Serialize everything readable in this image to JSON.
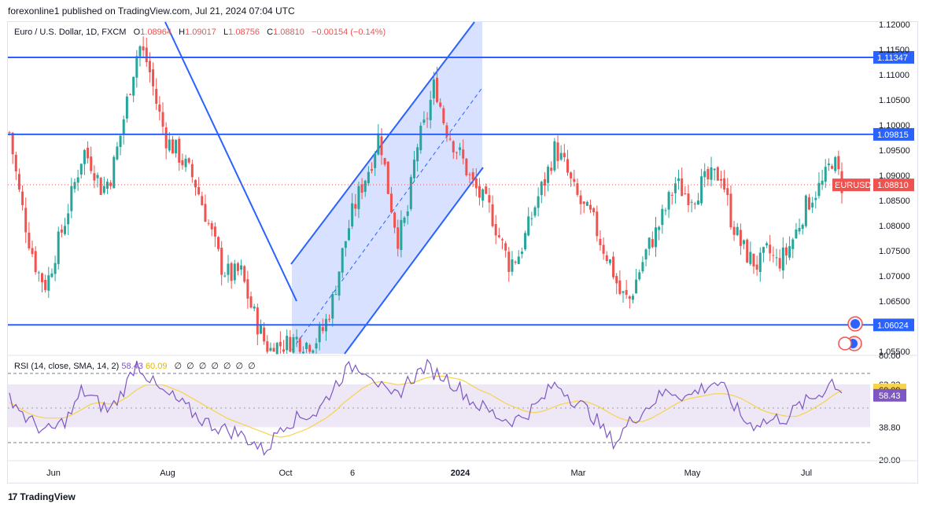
{
  "header": {
    "publisher_line": "forexonline1 published on TradingView.com, Jul 21, 2024 07:04 UTC"
  },
  "legend": {
    "symbol": "Euro / U.S. Dollar, 1D, FXCM",
    "open_label": "O",
    "open": "1.08964",
    "high_label": "H",
    "high": "1.09017",
    "low_label": "L",
    "low": "1.08756",
    "close_label": "C",
    "close": "1.08810",
    "change": "−0.00154 (−0.14%)"
  },
  "rsi_legend": {
    "label": "RSI (14, close, SMA, 14, 2)",
    "rsi_value": "58.43",
    "sma_value": "60.09",
    "empty_markers": [
      "∅",
      "∅",
      "∅",
      "∅",
      "∅",
      "∅",
      "∅"
    ]
  },
  "footer": {
    "brand": "TradingView",
    "logo": "17"
  },
  "colors": {
    "bull": "#26a69a",
    "bear": "#ef5350",
    "line_blue": "#2962ff",
    "channel_fill": "#d1dcff",
    "rsi_line": "#7e57c2",
    "rsi_sma": "#f7d34a",
    "rsi_band": "#ede7f6"
  },
  "chart_data": [
    {
      "type": "candlestick",
      "title": "Euro / U.S. Dollar, 1D, FXCM",
      "ylim": [
        1.0545,
        1.1205
      ],
      "y_ticks": [
        "1.12000",
        "1.11500",
        "1.11000",
        "1.10500",
        "1.10000",
        "1.09500",
        "1.09000",
        "1.08500",
        "1.08000",
        "1.07500",
        "1.07000",
        "1.06500",
        "1.05500"
      ],
      "x_labels": [
        "Jun",
        "Aug",
        "Oct",
        "6",
        "2024",
        "Mar",
        "May",
        "Jul"
      ],
      "current_price": {
        "label": "EURUSD",
        "value": "1.08810"
      },
      "horizontal_levels": [
        {
          "name": "resistance-high",
          "value": "1.11347"
        },
        {
          "name": "resistance-mid",
          "value": "1.09815"
        },
        {
          "name": "support",
          "value": "1.06024"
        }
      ],
      "close_path": [
        1.0985,
        1.087,
        1.078,
        1.071,
        1.068,
        1.075,
        1.081,
        1.088,
        1.095,
        1.092,
        1.087,
        1.09,
        1.098,
        1.1075,
        1.116,
        1.112,
        1.1035,
        1.097,
        1.095,
        1.092,
        1.089,
        1.0835,
        1.0775,
        1.0715,
        1.07,
        1.071,
        1.0645,
        1.0595,
        1.055,
        1.0562,
        1.0565,
        1.0575,
        1.0565,
        1.057,
        1.0595,
        1.0655,
        1.0745,
        1.082,
        1.0875,
        1.092,
        1.0985,
        1.0865,
        1.0775,
        1.082,
        1.0955,
        1.1005,
        1.1085,
        1.1005,
        1.0965,
        1.093,
        1.0885,
        1.0855,
        1.083,
        1.0775,
        1.0725,
        1.074,
        1.079,
        1.085,
        1.0895,
        1.0955,
        1.092,
        1.087,
        1.0835,
        1.0815,
        1.0765,
        1.0725,
        1.0665,
        1.065,
        1.0705,
        1.0755,
        1.079,
        1.0835,
        1.0885,
        1.0865,
        1.086,
        1.0885,
        1.0895,
        1.0905,
        1.0815,
        1.0765,
        1.0735,
        1.072,
        1.075,
        1.0725,
        1.0745,
        1.0785,
        1.0835,
        1.0865,
        1.0885,
        1.0935,
        1.0881
      ]
    },
    {
      "type": "line",
      "title": "RSI (14, close, SMA, 14, 2)",
      "ylim": [
        20,
        80
      ],
      "y_ticks": [
        "80.00",
        "63.33",
        "38.80",
        "20.00"
      ],
      "series": [
        {
          "name": "RSI",
          "last": 58.43,
          "values": [
            57,
            50,
            43,
            40,
            36,
            38,
            42,
            48,
            60,
            56,
            52,
            48,
            55,
            64,
            76,
            70,
            63,
            58,
            56,
            52,
            48,
            44,
            41,
            39,
            37,
            36,
            33,
            30,
            25,
            30,
            40,
            42,
            44,
            46,
            47,
            55,
            63,
            70,
            74,
            73,
            70,
            62,
            55,
            58,
            65,
            69,
            74,
            70,
            68,
            64,
            60,
            54,
            51,
            48,
            45,
            43,
            43,
            46,
            50,
            55,
            63,
            62,
            56,
            52,
            48,
            42,
            34,
            30,
            38,
            44,
            48,
            53,
            57,
            60,
            58,
            56,
            60,
            62,
            65,
            60,
            52,
            44,
            40,
            42,
            42,
            44,
            44,
            50,
            53,
            56,
            60,
            66,
            58.43
          ]
        },
        {
          "name": "SMA",
          "last": 60.09,
          "values": [
            53,
            50,
            47,
            45,
            44,
            44,
            44,
            46,
            49,
            52,
            53,
            52,
            53,
            56,
            60,
            63,
            63,
            63,
            61,
            59,
            56,
            53,
            50,
            47,
            44,
            42,
            40,
            38,
            36,
            34,
            33,
            34,
            36,
            38,
            41,
            44,
            48,
            53,
            57,
            61,
            64,
            65,
            64,
            63,
            64,
            65,
            67,
            68,
            68,
            67,
            66,
            63,
            60,
            58,
            55,
            52,
            50,
            48,
            47,
            48,
            50,
            52,
            53,
            54,
            53,
            51,
            48,
            45,
            43,
            42,
            42,
            44,
            47,
            50,
            53,
            55,
            56,
            57,
            58,
            58,
            57,
            55,
            52,
            49,
            47,
            46,
            45,
            45,
            47,
            50,
            53,
            57,
            60.09
          ]
        }
      ],
      "band": [
        38.8,
        63.33
      ]
    }
  ]
}
